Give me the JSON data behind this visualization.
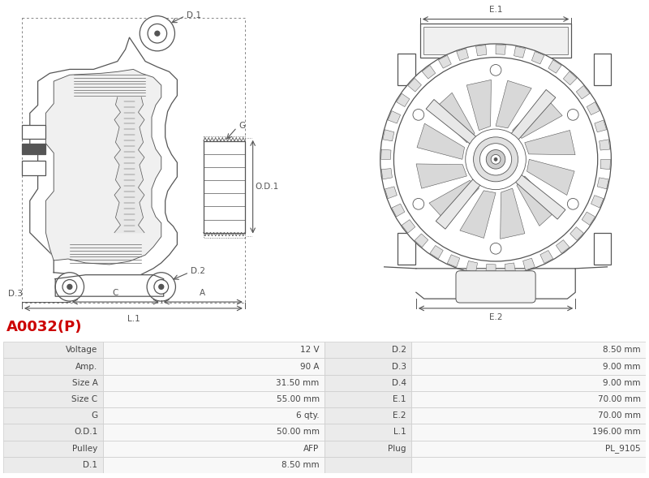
{
  "title": "A0032(P)",
  "title_color": "#cc0000",
  "title_fontsize": 13,
  "bg_color": "#ffffff",
  "table_rows": [
    [
      "Voltage",
      "12 V",
      "D.2",
      "8.50 mm"
    ],
    [
      "Amp.",
      "90 A",
      "D.3",
      "9.00 mm"
    ],
    [
      "Size A",
      "31.50 mm",
      "D.4",
      "9.00 mm"
    ],
    [
      "Size C",
      "55.00 mm",
      "E.1",
      "70.00 mm"
    ],
    [
      "G",
      "6 qty.",
      "E.2",
      "70.00 mm"
    ],
    [
      "O.D.1",
      "50.00 mm",
      "L.1",
      "196.00 mm"
    ],
    [
      "Pulley",
      "AFP",
      "Plug",
      "PL_9105"
    ],
    [
      "D.1",
      "8.50 mm",
      "",
      ""
    ]
  ],
  "table_row_bg_label": "#ebebeb",
  "table_row_bg_value": "#f8f8f8",
  "table_border_color": "#cccccc",
  "table_text_color": "#444444"
}
